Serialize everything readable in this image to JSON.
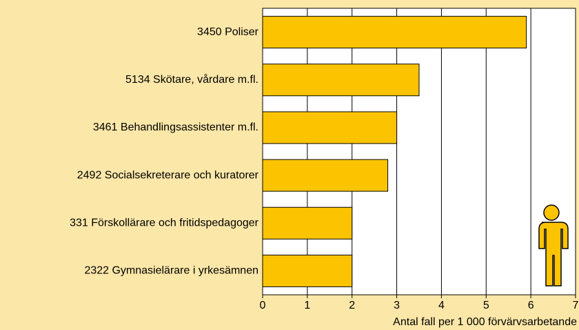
{
  "chart_data": {
    "type": "hbar",
    "categories": [
      "3450 Poliser",
      "5134 Skötare, vårdare m.fl.",
      "3461 Behandlingsassistenter m.fl.",
      "2492 Socialsekreterare och kuratorer",
      "331 Förskollärare och fritidspedagoger",
      "2322 Gymnasielärare i yrkesämnen"
    ],
    "values": [
      5.9,
      3.5,
      3.0,
      2.8,
      2.0,
      2.0
    ],
    "color": "#fcc400",
    "xlabel": "Antal fall per 1 000 förvärvsarbetande",
    "xlim": [
      0,
      7
    ],
    "xticks": [
      0,
      1,
      2,
      3,
      4,
      5,
      6,
      7
    ],
    "grid": true
  }
}
